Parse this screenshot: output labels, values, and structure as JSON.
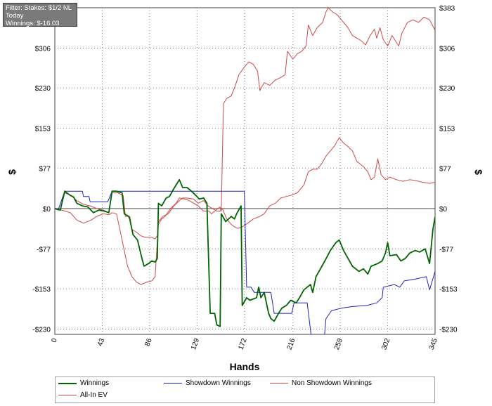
{
  "filter": {
    "line1": "Filter: Stakes: $1/2 NL",
    "line2": "Today",
    "line3": "Winnings: $-16.03"
  },
  "chart_data": {
    "type": "line",
    "xlabel": "Hands",
    "ylabel_left": "$",
    "ylabel_right": "$",
    "xlim": [
      0,
      345
    ],
    "ylim": [
      -240,
      383
    ],
    "x_ticks": [
      0,
      43,
      86,
      129,
      172,
      216,
      259,
      302,
      345
    ],
    "y_ticks": [
      -230,
      -153,
      -77,
      0,
      77,
      153,
      230,
      306,
      383
    ],
    "y_tick_labels": [
      "-$230",
      "-$153",
      "-$77",
      "$0",
      "$77",
      "$153",
      "$230",
      "$306",
      "$383"
    ],
    "grid": true,
    "legend_position": "bottom",
    "series": [
      {
        "name": "Winnings",
        "color": "#006400",
        "points": [
          [
            0,
            0
          ],
          [
            5,
            -3
          ],
          [
            9,
            33
          ],
          [
            14,
            25
          ],
          [
            17,
            22
          ],
          [
            20,
            10
          ],
          [
            25,
            5
          ],
          [
            30,
            3
          ],
          [
            35,
            -8
          ],
          [
            40,
            -3
          ],
          [
            45,
            -5
          ],
          [
            49,
            -8
          ],
          [
            52,
            33
          ],
          [
            56,
            33
          ],
          [
            61,
            30
          ],
          [
            63,
            -10
          ],
          [
            67,
            -15
          ],
          [
            68,
            -20
          ],
          [
            71,
            -50
          ],
          [
            75,
            -60
          ],
          [
            79,
            -95
          ],
          [
            81,
            -110
          ],
          [
            85,
            -105
          ],
          [
            88,
            -100
          ],
          [
            91,
            -102
          ],
          [
            93,
            -95
          ],
          [
            94,
            10
          ],
          [
            97,
            5
          ],
          [
            101,
            20
          ],
          [
            104,
            23
          ],
          [
            108,
            38
          ],
          [
            113,
            55
          ],
          [
            116,
            40
          ],
          [
            120,
            40
          ],
          [
            124,
            33
          ],
          [
            128,
            25
          ],
          [
            131,
            18
          ],
          [
            135,
            20
          ],
          [
            138,
            10
          ],
          [
            141,
            -200
          ],
          [
            145,
            -200
          ],
          [
            147,
            -222
          ],
          [
            150,
            -225
          ],
          [
            151,
            -10
          ],
          [
            155,
            -25
          ],
          [
            160,
            -15
          ],
          [
            163,
            -20
          ],
          [
            165,
            -10
          ],
          [
            169,
            5
          ],
          [
            170,
            -185
          ],
          [
            174,
            -170
          ],
          [
            177,
            -175
          ],
          [
            183,
            -170
          ],
          [
            185,
            -150
          ],
          [
            187,
            -170
          ],
          [
            190,
            -160
          ],
          [
            194,
            -200
          ],
          [
            196,
            -210
          ],
          [
            199,
            -215
          ],
          [
            203,
            -200
          ],
          [
            206,
            -190
          ],
          [
            210,
            -185
          ],
          [
            214,
            -175
          ],
          [
            219,
            -180
          ],
          [
            222,
            -170
          ],
          [
            226,
            -155
          ],
          [
            232,
            -145
          ],
          [
            234,
            -160
          ],
          [
            237,
            -130
          ],
          [
            245,
            -100
          ],
          [
            250,
            -80
          ],
          [
            255,
            -65
          ],
          [
            258,
            -60
          ],
          [
            262,
            -80
          ],
          [
            266,
            -95
          ],
          [
            270,
            -110
          ],
          [
            276,
            -120
          ],
          [
            280,
            -115
          ],
          [
            284,
            -125
          ],
          [
            287,
            -110
          ],
          [
            293,
            -105
          ],
          [
            297,
            -100
          ],
          [
            300,
            -85
          ],
          [
            302,
            -65
          ],
          [
            304,
            -90
          ],
          [
            310,
            -88
          ],
          [
            314,
            -100
          ],
          [
            318,
            -95
          ],
          [
            322,
            -85
          ],
          [
            327,
            -80
          ],
          [
            331,
            -83
          ],
          [
            336,
            -77
          ],
          [
            340,
            -105
          ],
          [
            343,
            -40
          ],
          [
            345,
            -16
          ]
        ]
      },
      {
        "name": "Showdown Winnings",
        "color": "#2020c0",
        "points": [
          [
            0,
            0
          ],
          [
            3,
            -3
          ],
          [
            9,
            33
          ],
          [
            25,
            33
          ],
          [
            26,
            23
          ],
          [
            31,
            23
          ],
          [
            32,
            13
          ],
          [
            48,
            13
          ],
          [
            52,
            33
          ],
          [
            172,
            33
          ],
          [
            174,
            -150
          ],
          [
            178,
            -150
          ],
          [
            181,
            -160
          ],
          [
            196,
            -160
          ],
          [
            199,
            -200
          ],
          [
            215,
            -200
          ],
          [
            217,
            -180
          ],
          [
            229,
            -180
          ],
          [
            233,
            -250
          ],
          [
            236,
            -250
          ],
          [
            240,
            -280
          ],
          [
            243,
            -280
          ],
          [
            246,
            -210
          ],
          [
            251,
            -195
          ],
          [
            260,
            -190
          ],
          [
            270,
            -187
          ],
          [
            283,
            -185
          ],
          [
            292,
            -180
          ],
          [
            297,
            -170
          ],
          [
            298,
            -150
          ],
          [
            308,
            -145
          ],
          [
            313,
            -150
          ],
          [
            317,
            -138
          ],
          [
            326,
            -135
          ],
          [
            337,
            -130
          ],
          [
            340,
            -155
          ],
          [
            345,
            -120
          ]
        ]
      },
      {
        "name": "Non Showdown Winnings",
        "color": "#d04848",
        "points": [
          [
            0,
            0
          ],
          [
            4,
            -2
          ],
          [
            8,
            -4
          ],
          [
            14,
            -8
          ],
          [
            20,
            -22
          ],
          [
            26,
            -28
          ],
          [
            33,
            -22
          ],
          [
            38,
            -15
          ],
          [
            44,
            -10
          ],
          [
            49,
            -12
          ],
          [
            52,
            -8
          ],
          [
            56,
            -10
          ],
          [
            59,
            -40
          ],
          [
            62,
            -70
          ],
          [
            66,
            -110
          ],
          [
            70,
            -130
          ],
          [
            74,
            -140
          ],
          [
            78,
            -145
          ],
          [
            84,
            -140
          ],
          [
            88,
            -138
          ],
          [
            91,
            -130
          ],
          [
            94,
            -30
          ],
          [
            97,
            -20
          ],
          [
            100,
            -15
          ],
          [
            105,
            0
          ],
          [
            110,
            10
          ],
          [
            113,
            20
          ],
          [
            118,
            18
          ],
          [
            122,
            15
          ],
          [
            126,
            10
          ],
          [
            130,
            5
          ],
          [
            135,
            -5
          ],
          [
            140,
            -5
          ],
          [
            142,
            -10
          ],
          [
            148,
            0
          ],
          [
            150,
            3
          ],
          [
            151,
            -5
          ],
          [
            153,
            200
          ],
          [
            156,
            210
          ],
          [
            160,
            215
          ],
          [
            163,
            230
          ],
          [
            167,
            255
          ],
          [
            172,
            270
          ],
          [
            176,
            280
          ],
          [
            180,
            275
          ],
          [
            184,
            262
          ],
          [
            186,
            225
          ],
          [
            190,
            240
          ],
          [
            195,
            235
          ],
          [
            200,
            245
          ],
          [
            205,
            250
          ],
          [
            209,
            255
          ],
          [
            211,
            300
          ],
          [
            216,
            285
          ],
          [
            220,
            295
          ],
          [
            224,
            300
          ],
          [
            228,
            310
          ],
          [
            230,
            350
          ],
          [
            234,
            330
          ],
          [
            238,
            345
          ],
          [
            243,
            355
          ],
          [
            246,
            375
          ],
          [
            248,
            383
          ],
          [
            252,
            375
          ],
          [
            256,
            370
          ],
          [
            260,
            360
          ],
          [
            266,
            345
          ],
          [
            270,
            330
          ],
          [
            274,
            325
          ],
          [
            278,
            320
          ],
          [
            282,
            312
          ],
          [
            286,
            330
          ],
          [
            290,
            342
          ],
          [
            292,
            325
          ],
          [
            295,
            345
          ],
          [
            298,
            322
          ],
          [
            302,
            310
          ],
          [
            306,
            330
          ],
          [
            309,
            320
          ],
          [
            312,
            310
          ],
          [
            315,
            335
          ],
          [
            320,
            355
          ],
          [
            325,
            360
          ],
          [
            330,
            355
          ],
          [
            335,
            365
          ],
          [
            340,
            360
          ],
          [
            345,
            340
          ]
        ]
      },
      {
        "name": "All-In EV",
        "color": "#d04848",
        "points": [
          [
            0,
            0
          ],
          [
            5,
            -3
          ],
          [
            9,
            30
          ],
          [
            15,
            25
          ],
          [
            20,
            15
          ],
          [
            26,
            8
          ],
          [
            32,
            5
          ],
          [
            38,
            0
          ],
          [
            44,
            -3
          ],
          [
            49,
            -8
          ],
          [
            52,
            30
          ],
          [
            57,
            30
          ],
          [
            62,
            25
          ],
          [
            64,
            -15
          ],
          [
            68,
            -15
          ],
          [
            70,
            -40
          ],
          [
            74,
            -45
          ],
          [
            78,
            -52
          ],
          [
            82,
            -55
          ],
          [
            88,
            -55
          ],
          [
            91,
            -58
          ],
          [
            93,
            -52
          ],
          [
            94,
            -25
          ],
          [
            98,
            -15
          ],
          [
            103,
            -10
          ],
          [
            108,
            5
          ],
          [
            113,
            15
          ],
          [
            116,
            20
          ],
          [
            120,
            20
          ],
          [
            126,
            18
          ],
          [
            130,
            10
          ],
          [
            135,
            15
          ],
          [
            139,
            5
          ],
          [
            143,
            0
          ],
          [
            147,
            -5
          ],
          [
            150,
            -5
          ],
          [
            152,
            0
          ],
          [
            156,
            -20
          ],
          [
            160,
            -30
          ],
          [
            163,
            -35
          ],
          [
            166,
            -38
          ],
          [
            170,
            -35
          ],
          [
            175,
            -28
          ],
          [
            180,
            -20
          ],
          [
            186,
            -15
          ],
          [
            190,
            -10
          ],
          [
            195,
            5
          ],
          [
            200,
            10
          ],
          [
            205,
            20
          ],
          [
            210,
            23
          ],
          [
            214,
            25
          ],
          [
            220,
            30
          ],
          [
            226,
            45
          ],
          [
            230,
            70
          ],
          [
            234,
            75
          ],
          [
            238,
            75
          ],
          [
            242,
            85
          ],
          [
            246,
            100
          ],
          [
            250,
            110
          ],
          [
            254,
            120
          ],
          [
            256,
            128
          ],
          [
            258,
            135
          ],
          [
            262,
            125
          ],
          [
            266,
            118
          ],
          [
            270,
            110
          ],
          [
            274,
            90
          ],
          [
            277,
            85
          ],
          [
            280,
            80
          ],
          [
            284,
            70
          ],
          [
            287,
            55
          ],
          [
            290,
            60
          ],
          [
            293,
            95
          ],
          [
            296,
            65
          ],
          [
            300,
            55
          ],
          [
            304,
            60
          ],
          [
            310,
            55
          ],
          [
            316,
            52
          ],
          [
            322,
            55
          ],
          [
            328,
            53
          ],
          [
            334,
            50
          ],
          [
            340,
            48
          ],
          [
            345,
            50
          ]
        ]
      }
    ]
  },
  "legend": {
    "winnings": "Winnings",
    "showdown": "Showdown Winnings",
    "non_showdown": "Non Showdown Winnings",
    "all_in_ev": "All-In EV"
  }
}
